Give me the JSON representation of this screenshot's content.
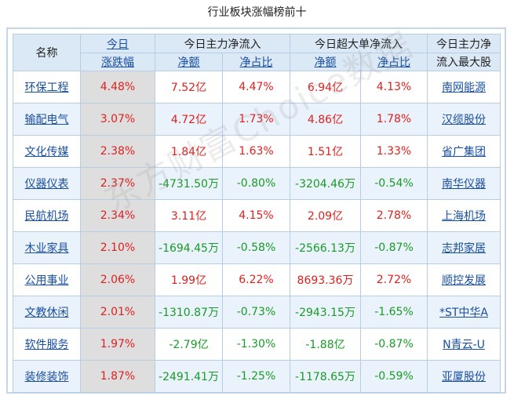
{
  "page_title": "行业板块涨幅榜前十",
  "header": {
    "name": "名称",
    "today": "今日",
    "change_pct": "涨跌幅",
    "main_inflow": "今日主力净流入",
    "super_inflow": "今日超大单净流入",
    "top_stock_line1": "今日主力净",
    "top_stock_line2": "流入最大股",
    "net_amount": "净额",
    "net_ratio": "净占比",
    "net_amount2": "净额",
    "net_ratio2": "净占比"
  },
  "rows": [
    {
      "name": "环保工程",
      "pct": "4.48%",
      "main_amt": "7.52亿",
      "main_ratio": "4.47%",
      "super_amt": "6.94亿",
      "super_ratio": "4.13%",
      "stock": "南网能源"
    },
    {
      "name": "输配电气",
      "pct": "3.07%",
      "main_amt": "4.72亿",
      "main_ratio": "1.73%",
      "super_amt": "4.86亿",
      "super_ratio": "1.78%",
      "stock": "汉缆股份"
    },
    {
      "name": "文化传媒",
      "pct": "2.38%",
      "main_amt": "1.84亿",
      "main_ratio": "1.63%",
      "super_amt": "1.51亿",
      "super_ratio": "1.33%",
      "stock": "省广集团"
    },
    {
      "name": "仪器仪表",
      "pct": "2.37%",
      "main_amt": "-4731.50万",
      "main_ratio": "-0.80%",
      "super_amt": "-3204.46万",
      "super_ratio": "-0.54%",
      "stock": "南华仪器"
    },
    {
      "name": "民航机场",
      "pct": "2.34%",
      "main_amt": "3.11亿",
      "main_ratio": "4.15%",
      "super_amt": "2.09亿",
      "super_ratio": "2.78%",
      "stock": "上海机场"
    },
    {
      "name": "木业家具",
      "pct": "2.10%",
      "main_amt": "-1694.45万",
      "main_ratio": "-0.58%",
      "super_amt": "-2566.13万",
      "super_ratio": "-0.87%",
      "stock": "志邦家居"
    },
    {
      "name": "公用事业",
      "pct": "2.06%",
      "main_amt": "1.99亿",
      "main_ratio": "6.22%",
      "super_amt": "8693.36万",
      "super_ratio": "2.72%",
      "stock": "顺控发展"
    },
    {
      "name": "文教休闲",
      "pct": "2.01%",
      "main_amt": "-1310.87万",
      "main_ratio": "-0.73%",
      "super_amt": "-2943.15万",
      "super_ratio": "-1.65%",
      "stock": "*ST中华A"
    },
    {
      "name": "软件服务",
      "pct": "1.97%",
      "main_amt": "-2.79亿",
      "main_ratio": "-1.30%",
      "super_amt": "-1.88亿",
      "super_ratio": "-0.87%",
      "stock": "N青云-U"
    },
    {
      "name": "装修装饰",
      "pct": "1.87%",
      "main_amt": "-2491.41万",
      "main_ratio": "-1.25%",
      "super_amt": "-1178.65万",
      "super_ratio": "-0.59%",
      "stock": "亚厦股份"
    }
  ],
  "watermark": "东方财富Choice数据",
  "colors": {
    "positive": "#e02020",
    "negative": "#1a9a2a",
    "link": "#1a4fa0",
    "header_bg": "#dbe8f5"
  }
}
